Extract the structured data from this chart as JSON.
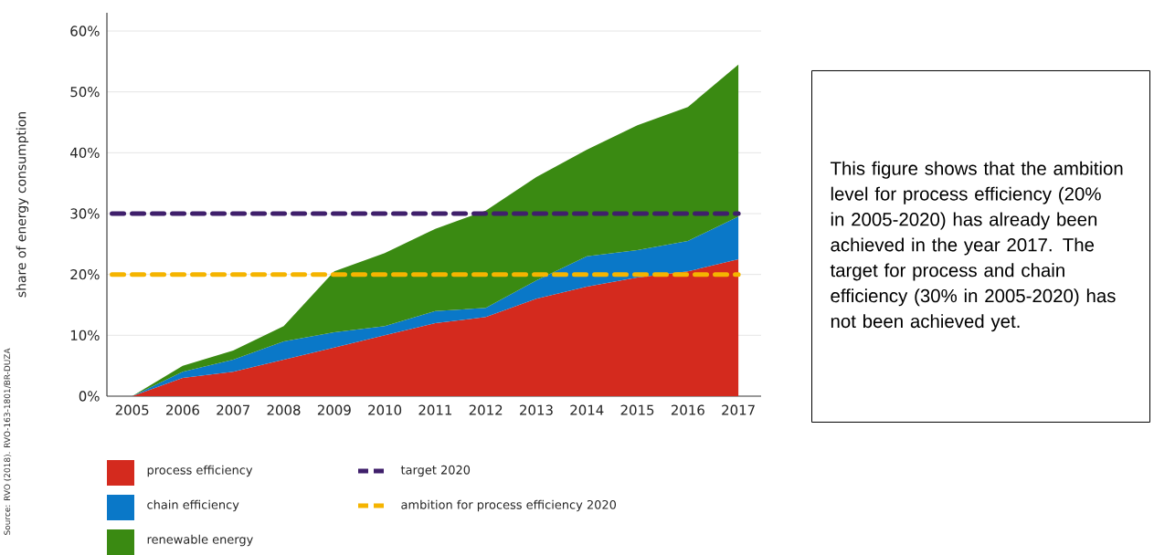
{
  "chart_data": {
    "type": "area",
    "ylabel": "share of energy consumption",
    "categories": [
      "2005",
      "2006",
      "2007",
      "2008",
      "2009",
      "2010",
      "2011",
      "2012",
      "2013",
      "2014",
      "2015",
      "2016",
      "2017"
    ],
    "stacked": true,
    "series": [
      {
        "name": "process efficiency",
        "color": "#d42a1e",
        "values": [
          0,
          3,
          4,
          6,
          8,
          10,
          12,
          13,
          16,
          18,
          19.5,
          20.5,
          22.5
        ]
      },
      {
        "name": "chain efficiency",
        "color": "#0a78c8",
        "values": [
          0,
          1,
          2,
          3,
          2.5,
          1.5,
          2,
          1.5,
          3,
          5,
          4.5,
          5,
          7
        ]
      },
      {
        "name": "renewable energy",
        "color": "#3a8a12",
        "values": [
          0,
          1,
          1.5,
          2.5,
          10,
          12,
          13.5,
          16,
          17,
          17.5,
          20.5,
          22,
          25
        ]
      }
    ],
    "ylim": [
      0,
      63
    ],
    "yticks": [
      {
        "value": 0,
        "label": "0%"
      },
      {
        "value": 10,
        "label": "10%"
      },
      {
        "value": 20,
        "label": "20%"
      },
      {
        "value": 30,
        "label": "30%"
      },
      {
        "value": 40,
        "label": "40%"
      },
      {
        "value": 50,
        "label": "50%"
      },
      {
        "value": 60,
        "label": "60%"
      }
    ],
    "grid": "y",
    "legend": "bottom",
    "ref_lines": [
      {
        "axis": "y",
        "value": 30,
        "label": "target 2020",
        "color": "#3f1f6b",
        "line_style": "dashed"
      },
      {
        "axis": "y",
        "value": 20,
        "label": "ambition for process efficiency 2020",
        "color": "#f5b400",
        "line_style": "dashed"
      }
    ],
    "annotations": [
      "This figure shows that the ambition level for process efficiency (20% in 2005-2020) has already been achieved in the year 2017. The target for process and chain efficiency (30% in 2005-2020) has not been achieved yet.",
      "Source: RVO (2018). RVO-163-1801/BR-DUZA"
    ]
  }
}
